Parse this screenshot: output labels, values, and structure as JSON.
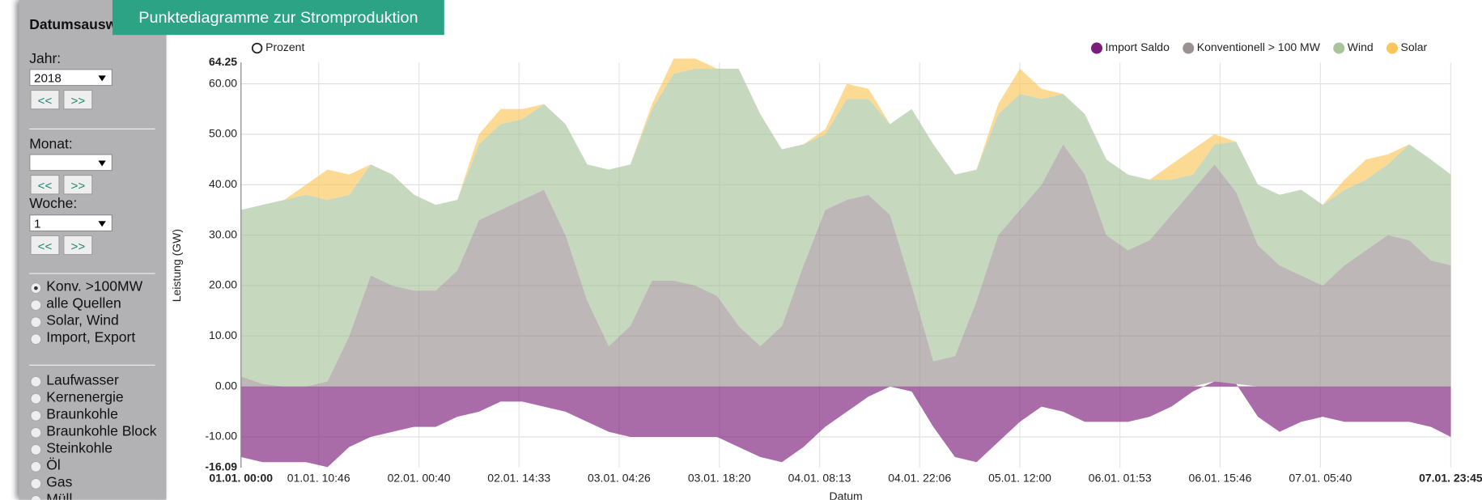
{
  "tab_title": "Punktediagramme zur Stromproduktion",
  "sidebar": {
    "heading": "Datumsauswahl",
    "year_label": "Jahr:",
    "year": "2018",
    "month_label": "Monat:",
    "week_label": "Woche:",
    "week": "1",
    "prev": "<<",
    "next": ">>",
    "view_options": [
      "Konv. >100MW",
      "alle Quellen",
      "Solar, Wind",
      "Import, Export"
    ],
    "sources": [
      "Laufwasser",
      "Kernenergie",
      "Braunkohle",
      "Braunkohle Block",
      "Steinkohle",
      "Öl",
      "Gas",
      "Müll"
    ]
  },
  "controls": {
    "percent": "Prozent"
  },
  "chart_data": {
    "type": "area",
    "stacked": true,
    "ylabel": "Leistung (GW)",
    "xlabel": "Datum",
    "grid": true,
    "legend": "top-right",
    "x": [
      0,
      3,
      6,
      9,
      12,
      15,
      18,
      21,
      24,
      27,
      30,
      33,
      36,
      39,
      42,
      45,
      48,
      51,
      54,
      57,
      60,
      63,
      66,
      69,
      72,
      75,
      78,
      81,
      84,
      87,
      90,
      93,
      96,
      99,
      102,
      105,
      108,
      111,
      114,
      117,
      120,
      123,
      126,
      129,
      132,
      135,
      138,
      141,
      144,
      147,
      150,
      153,
      156,
      159,
      162,
      165,
      167.75
    ],
    "xlim": [
      0,
      167.75
    ],
    "xticks": [
      {
        "value": 0,
        "label": "01.01. 00:00"
      },
      {
        "value": 10.77,
        "label": "01.01. 10:46"
      },
      {
        "value": 24.67,
        "label": "02.01. 00:40"
      },
      {
        "value": 38.55,
        "label": "02.01. 14:33"
      },
      {
        "value": 52.43,
        "label": "03.01. 04:26"
      },
      {
        "value": 66.33,
        "label": "03.01. 18:20"
      },
      {
        "value": 80.22,
        "label": "04.01. 08:13"
      },
      {
        "value": 94.1,
        "label": "04.01. 22:06"
      },
      {
        "value": 108,
        "label": "05.01. 12:00"
      },
      {
        "value": 121.88,
        "label": "06.01. 01:53"
      },
      {
        "value": 135.77,
        "label": "06.01. 15:46"
      },
      {
        "value": 149.67,
        "label": "07.01. 05:40"
      },
      {
        "value": 167.75,
        "label": "07.01. 23:45"
      }
    ],
    "ylim": [
      -16.09,
      64.25
    ],
    "yticks": [
      {
        "value": -10,
        "label": "-10.00"
      },
      {
        "value": 0,
        "label": "0.00"
      },
      {
        "value": 10,
        "label": "10.00"
      },
      {
        "value": 20,
        "label": "20.00"
      },
      {
        "value": 30,
        "label": "30.00"
      },
      {
        "value": 40,
        "label": "40.00"
      },
      {
        "value": 50,
        "label": "50.00"
      },
      {
        "value": 60,
        "label": "60.00"
      }
    ],
    "series": [
      {
        "name": "Import Saldo",
        "color": "#7c1d7b",
        "values": [
          -14,
          -15,
          -15,
          -15,
          -16,
          -12,
          -10,
          -9,
          -8,
          -8,
          -6,
          -5,
          -3,
          -3,
          -4,
          -5,
          -7,
          -9,
          -10,
          -10,
          -10,
          -10,
          -10,
          -12,
          -14,
          -15,
          -12,
          -8,
          -5,
          -2,
          0,
          -1,
          -8,
          -14,
          -15,
          -11,
          -7,
          -4,
          -5,
          -7,
          -7,
          -7,
          -6,
          -4,
          -1,
          1,
          0.5,
          -6,
          -9,
          -7,
          -6,
          -7,
          -7,
          -7,
          -7,
          -8,
          -10
        ]
      },
      {
        "name": "Konventionell > 100 MW",
        "color": "#9a9191",
        "values": [
          2,
          0.5,
          0,
          0,
          1,
          10,
          22,
          20,
          19,
          19,
          23,
          33,
          35,
          37,
          39,
          30,
          17,
          8,
          12,
          21,
          21,
          20,
          18,
          12,
          8,
          12,
          24,
          35,
          37,
          38,
          34,
          20,
          5,
          6,
          17,
          30,
          35,
          40,
          48,
          42,
          30,
          27,
          29,
          34,
          39,
          43,
          38,
          28,
          24,
          22,
          20,
          24,
          27,
          30,
          29,
          25,
          24
        ]
      },
      {
        "name": "Wind",
        "color": "#a8c49c",
        "values": [
          33,
          35.5,
          37,
          38,
          36,
          28,
          22,
          22,
          19,
          17,
          14,
          15,
          17,
          16,
          17,
          22,
          27,
          35,
          32,
          34,
          41,
          43,
          45,
          51,
          46,
          35,
          24,
          15,
          20,
          19,
          18,
          35,
          43,
          36,
          26,
          24,
          23,
          17,
          10,
          12,
          15,
          15,
          12,
          7,
          3,
          4,
          10,
          12,
          14,
          17,
          16,
          15,
          14,
          14,
          19,
          20,
          18
        ]
      },
      {
        "name": "Solar",
        "color": "#fcc65a",
        "values": [
          0,
          0,
          0,
          2,
          6,
          4,
          0,
          0,
          0,
          0,
          0,
          2,
          3,
          2,
          0,
          0,
          0,
          0,
          0,
          1,
          3,
          2,
          0,
          0,
          0,
          0,
          0,
          1,
          3,
          2,
          0,
          0,
          0,
          0,
          0,
          2,
          5,
          2,
          0,
          0,
          0,
          0,
          0,
          3,
          5,
          2,
          0,
          0,
          0,
          0,
          0,
          2,
          4,
          2,
          0,
          0,
          0
        ]
      }
    ]
  }
}
